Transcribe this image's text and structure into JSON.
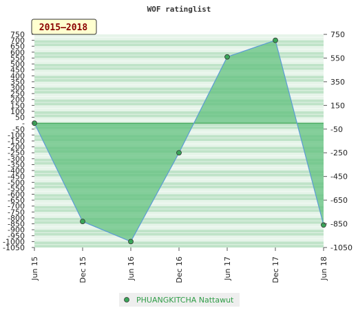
{
  "title": "WOF ratinglist",
  "badge": "2015—2018",
  "colors": {
    "fill": "#5ebf7c",
    "line": "#5b9bd5",
    "marker": "#3aa558",
    "band_light": "#e6f4e9",
    "band_dark": "#bfe3c8",
    "zero_line": "#2e9c46",
    "badge_bg": "#ffffd0",
    "legend_text": "#2e9c46"
  },
  "chart_data": {
    "type": "area",
    "title": "WOF ratinglist",
    "categories": [
      "Jun 15",
      "Dec 15",
      "Jun 16",
      "Dec 16",
      "Jun 17",
      "Dec 17",
      "Jun 18"
    ],
    "series": [
      {
        "name": "PHUANGKITCHA Nattawut",
        "values": [
          0,
          -830,
          -1000,
          -250,
          560,
          700,
          -860
        ]
      }
    ],
    "baseline": 0,
    "ylim": [
      -1050,
      750
    ],
    "y_left_ticks": [
      750,
      700,
      650,
      600,
      550,
      500,
      450,
      400,
      350,
      300,
      250,
      200,
      150,
      100,
      50,
      0,
      -50,
      -100,
      -150,
      -200,
      -250,
      -300,
      -350,
      -400,
      -450,
      -500,
      -550,
      -600,
      -650,
      -700,
      -750,
      -800,
      -850,
      -900,
      -950,
      -1000,
      -1050
    ],
    "y_left_labels": [
      "750",
      "700",
      "650",
      "600",
      "550",
      "500",
      "450",
      "400",
      "350",
      "300",
      "250",
      "200",
      "150",
      "100",
      "50",
      "-",
      "-50",
      "-100",
      "-150",
      "-200",
      "-250",
      "-300",
      "-350",
      "-400",
      "-450",
      "-500",
      "-550",
      "-600",
      "-650",
      "-700",
      "-750",
      "-800",
      "-850",
      "-900",
      "-950",
      "-1000",
      "-1050"
    ],
    "y_right_ticks": [
      750,
      550,
      350,
      150,
      -50,
      -250,
      -450,
      -650,
      -850,
      -1050
    ],
    "y_right_labels": [
      "750",
      "550",
      "350",
      "150",
      "-50",
      "-250",
      "-450",
      "-650",
      "-850",
      "-1050"
    ],
    "grid": "horizontal bands",
    "legend_position": "bottom-center"
  }
}
